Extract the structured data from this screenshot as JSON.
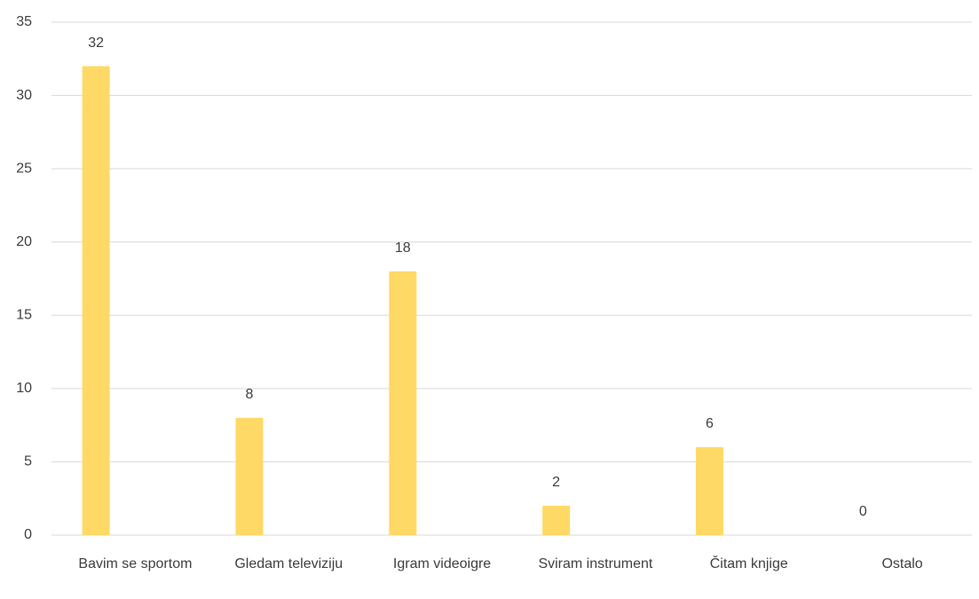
{
  "chart_data": {
    "type": "bar",
    "categories": [
      "Bavim se sportom",
      "Gledam televiziju",
      "Igram videoigre",
      "Sviram instrument",
      "Čitam knjige",
      "Ostalo"
    ],
    "values": [
      32,
      8,
      18,
      2,
      6,
      0
    ],
    "color": "#ffd966",
    "ylim": [
      0,
      35
    ],
    "yticks": [
      0,
      5,
      10,
      15,
      20,
      25,
      30,
      35
    ],
    "grid": true
  }
}
